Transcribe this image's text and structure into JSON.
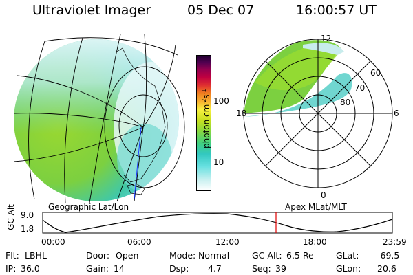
{
  "header": {
    "instrument": "Ultraviolet Imager",
    "date": "05 Dec 07",
    "time": "16:00:57 UT"
  },
  "colorbar": {
    "label": "photon cm",
    "label_sup1": "-2",
    "label_mid": "s",
    "label_sup2": "-1",
    "tick_labels": [
      "100",
      "10"
    ],
    "colors_bottom_to_top": [
      "#ffffff",
      "#c8f0f0",
      "#66e0e0",
      "#33c8c0",
      "#40d080",
      "#88d840",
      "#c8e020",
      "#f8f040",
      "#f8b030",
      "#f08020",
      "#e03030",
      "#c00040",
      "#900050",
      "#500050",
      "#200030"
    ]
  },
  "left_panel": {
    "label": "Geographic Lat/Lon"
  },
  "right_panel": {
    "label": "Apex  MLat/MLT",
    "mlt_labels": {
      "top": "12",
      "bottom": "0",
      "left": "18",
      "right": "6"
    },
    "lat_labels": [
      "60",
      "70",
      "80"
    ]
  },
  "altitude_plot": {
    "ylabel": "GC Alt",
    "y_ticks": [
      "9.0",
      "1.8"
    ],
    "x_ticks": [
      "00:00",
      "06:00",
      "12:00",
      "18:00",
      "23:59"
    ],
    "current_time_marker": "16:00"
  },
  "footer": {
    "row1": [
      {
        "label": "Flt:",
        "value": "LBHL"
      },
      {
        "label": "Door:",
        "value": "Open"
      },
      {
        "label": "Mode:",
        "value": "Normal"
      },
      {
        "label": "GC Alt:",
        "value": "6.5 Re"
      },
      {
        "label": "GLat:",
        "value": "-69.5"
      }
    ],
    "row2": [
      {
        "label": "IP:",
        "value": "36.0"
      },
      {
        "label": "Gain:",
        "value": "14"
      },
      {
        "label": "Dsp:",
        "value": "4.7"
      },
      {
        "label": "Seq:",
        "value": "39"
      },
      {
        "label": "GLon:",
        "value": "20.6"
      }
    ]
  }
}
